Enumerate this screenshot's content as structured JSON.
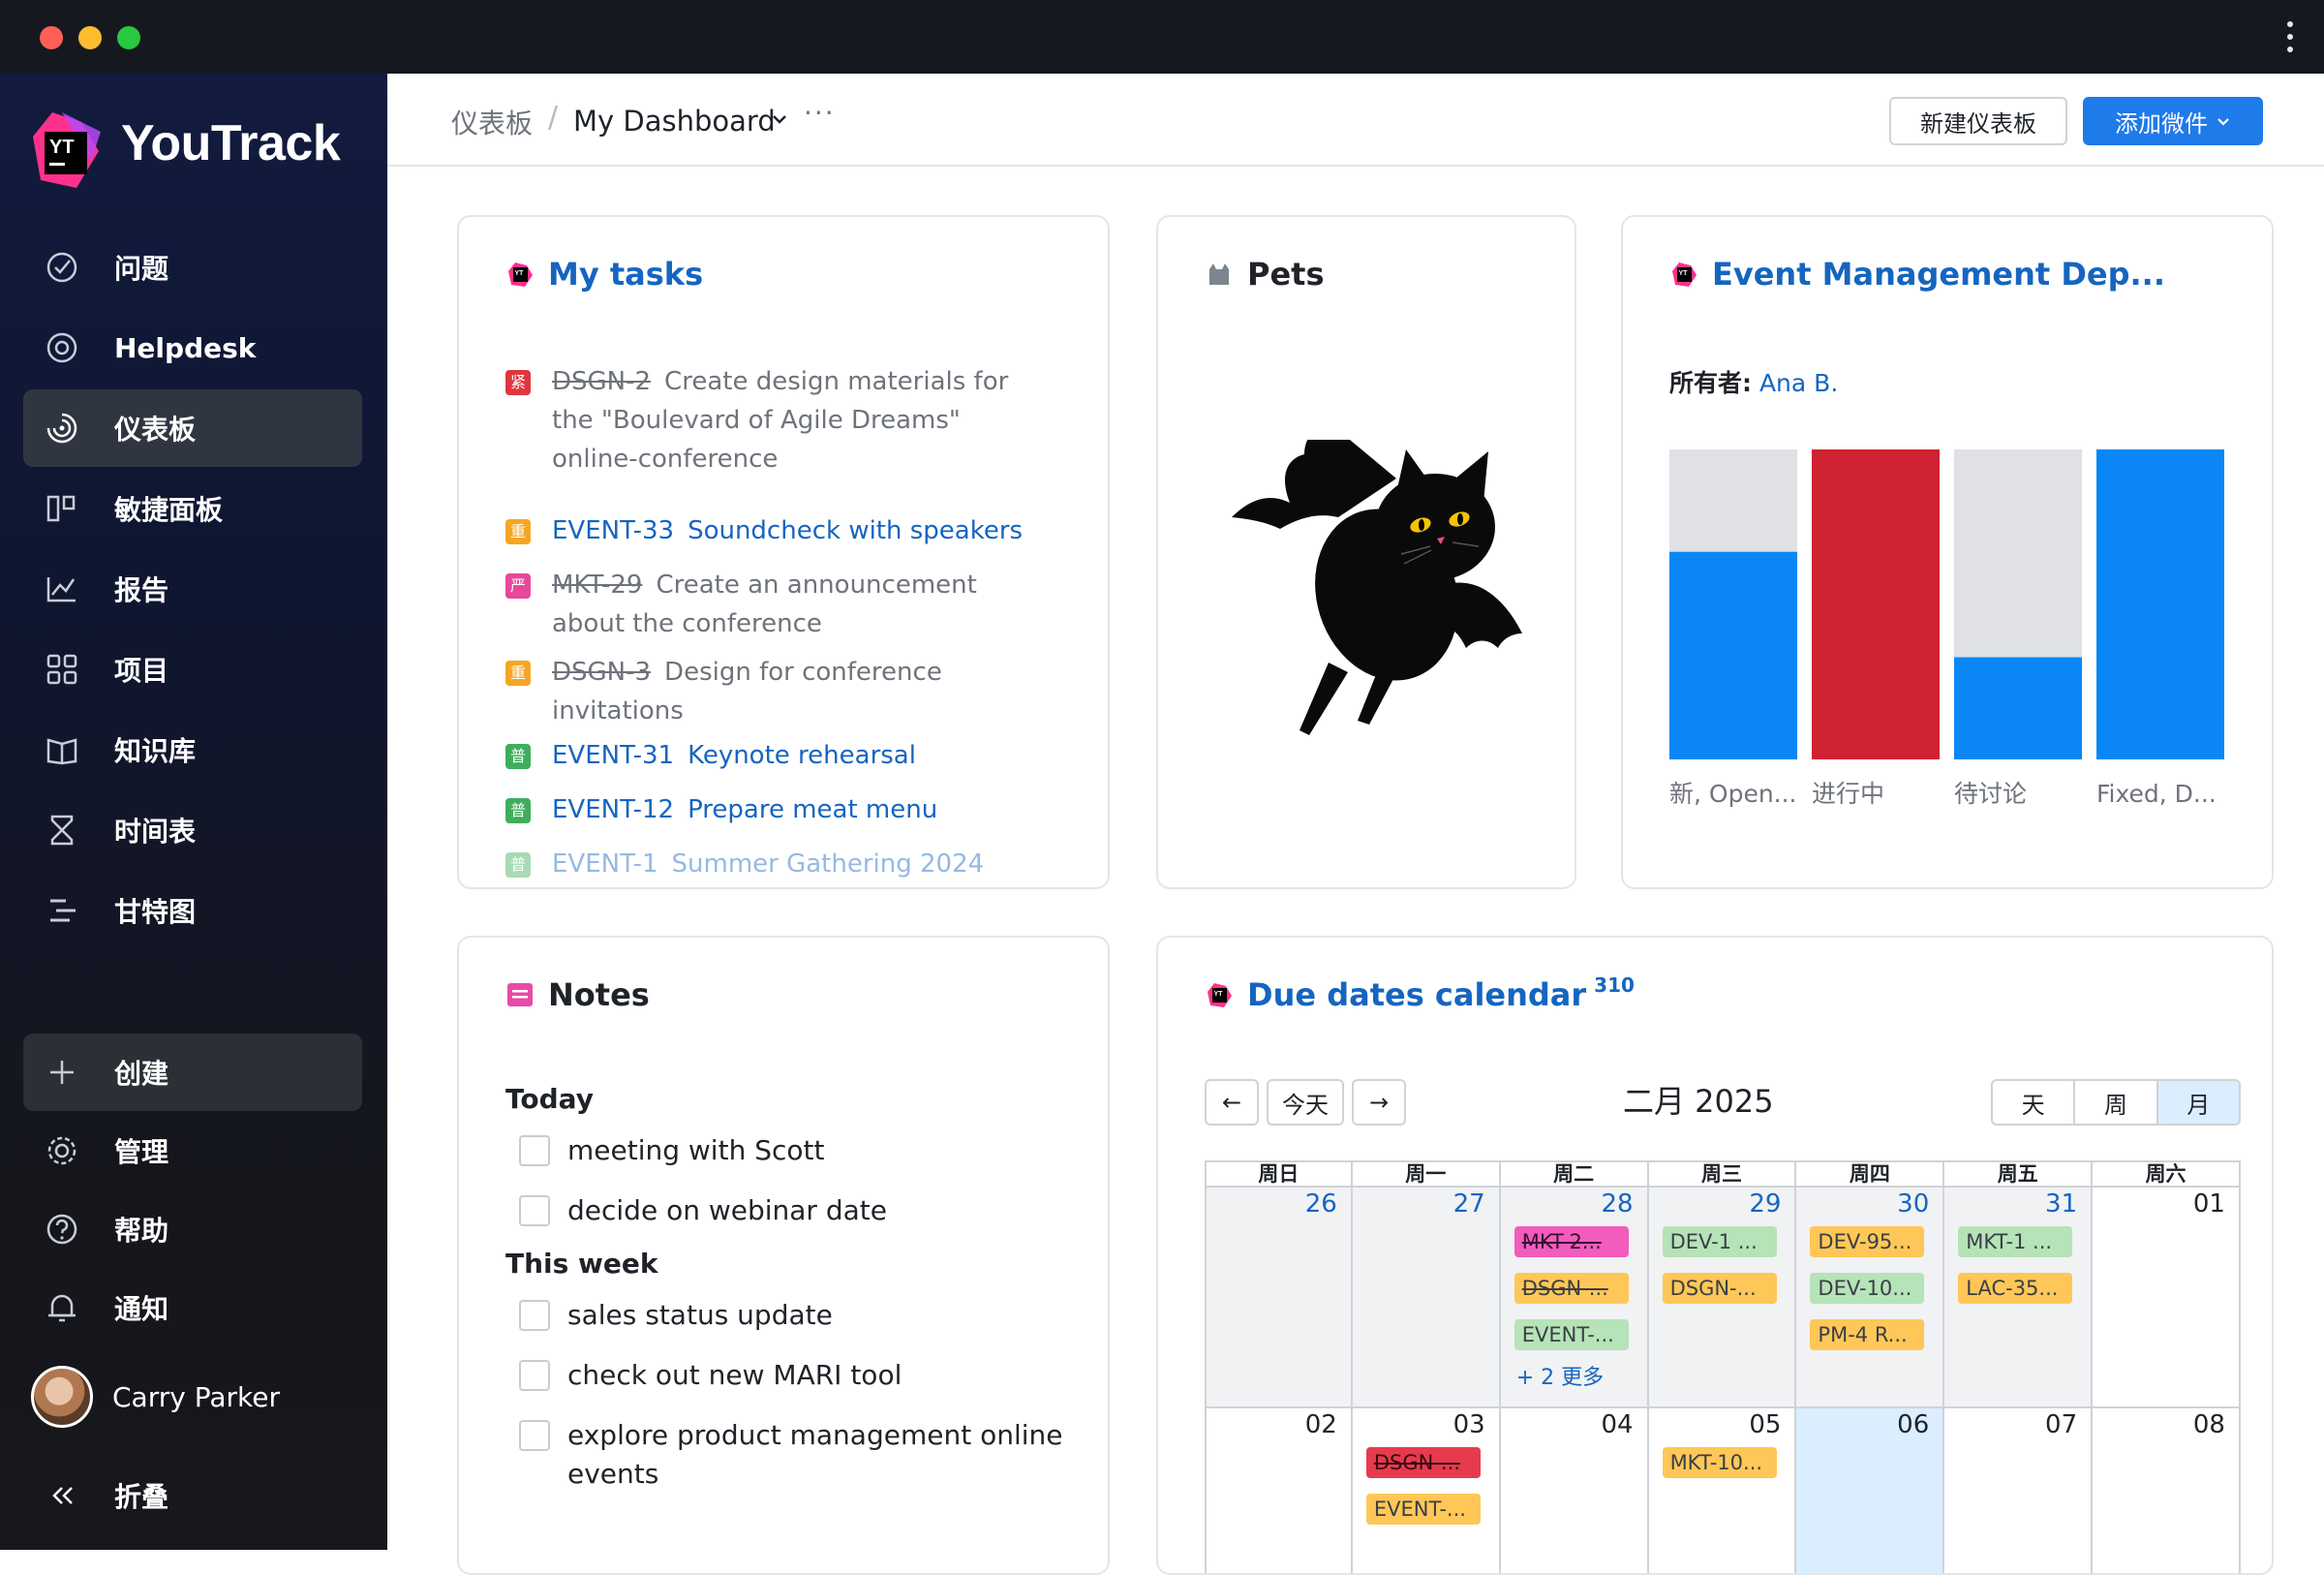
{
  "window": {
    "menu_icon": "vertical-dots-icon"
  },
  "sidebar": {
    "brand": "YouTrack",
    "logo_text": "YT",
    "items": [
      {
        "label": "问题",
        "icon": "check-circle-icon"
      },
      {
        "label": "Helpdesk",
        "icon": "lifebuoy-icon"
      },
      {
        "label": "仪表板",
        "icon": "dashboard-icon",
        "active": true
      },
      {
        "label": "敏捷面板",
        "icon": "agile-board-icon"
      },
      {
        "label": "报告",
        "icon": "chart-icon"
      },
      {
        "label": "项目",
        "icon": "grid-icon"
      },
      {
        "label": "知识库",
        "icon": "book-icon"
      },
      {
        "label": "时间表",
        "icon": "hourglass-icon"
      },
      {
        "label": "甘特图",
        "icon": "gantt-icon"
      }
    ],
    "bottom": [
      {
        "label": "创建",
        "icon": "plus-icon"
      },
      {
        "label": "管理",
        "icon": "gear-icon"
      },
      {
        "label": "帮助",
        "icon": "help-icon"
      },
      {
        "label": "通知",
        "icon": "bell-icon"
      }
    ],
    "user": {
      "name": "Carry Parker"
    },
    "collapse_label": "折叠"
  },
  "header": {
    "breadcrumb_root": "仪表板",
    "breadcrumb_sep": "/",
    "dashboard_name": "My Dashboard",
    "more": "···",
    "new_dashboard": "新建仪表板",
    "add_widget": "添加微件"
  },
  "my_tasks": {
    "title": "My tasks",
    "tasks": [
      {
        "prio": "紧",
        "prio_color": "#e0363f",
        "id": "DSGN-2",
        "summary": "Create design materials for the \"Boulevard of Agile Dreams\" online-conference",
        "done": true
      },
      {
        "prio": "重",
        "prio_color": "#f5a623",
        "id": "EVENT-33",
        "summary": "Soundcheck with speakers",
        "done": false
      },
      {
        "prio": "严",
        "prio_color": "#e8479a",
        "id": "MKT-29",
        "summary": "Create an announcement about the conference",
        "done": true
      },
      {
        "prio": "重",
        "prio_color": "#f5a623",
        "id": "DSGN-3",
        "summary": "Design for conference invitations",
        "done": true
      },
      {
        "prio": "普",
        "prio_color": "#3fae5c",
        "id": "EVENT-31",
        "summary": "Keynote rehearsal",
        "done": false
      },
      {
        "prio": "普",
        "prio_color": "#3fae5c",
        "id": "EVENT-12",
        "summary": "Prepare meat menu",
        "done": false
      },
      {
        "prio": "普",
        "prio_color": "#3fae5c",
        "id": "EVENT-1",
        "summary": "Summer Gathering 2024",
        "done": false
      }
    ]
  },
  "pets": {
    "title": "Pets",
    "image": "bat-cat-illustration"
  },
  "event_mgmt": {
    "title": "Event Management Dep...",
    "owner_label": "所有者:",
    "owner": "Ana B.",
    "chart_data": {
      "type": "bar",
      "stacked": true,
      "normalized": true,
      "categories": [
        "新, Open...",
        "进行中",
        "待讨论",
        "Fixed, D..."
      ],
      "series": [
        {
          "color": "#0a87f5",
          "values": [
            0.67,
            0,
            0.33,
            1.0
          ]
        },
        {
          "color": "#cf2233",
          "values": [
            0,
            1.0,
            0,
            0
          ]
        },
        {
          "color": "#dfe1e5",
          "values": [
            0.33,
            0,
            0.67,
            0
          ]
        }
      ],
      "ylim": [
        0,
        1
      ],
      "grid": false
    }
  },
  "notes": {
    "title": "Notes",
    "sections": [
      {
        "heading": "Today",
        "items": [
          "meeting with Scott",
          "decide on webinar date"
        ]
      },
      {
        "heading": "This week",
        "items": [
          "sales status update",
          "check out new MARI tool",
          "explore product management online events"
        ]
      }
    ]
  },
  "calendar": {
    "title": "Due dates calendar",
    "count": "310",
    "prev": "←",
    "today_btn": "今天",
    "next": "→",
    "month": "二月 2025",
    "views": [
      "天",
      "周",
      "月"
    ],
    "active_view": "月",
    "weekdays": [
      "周日",
      "周一",
      "周二",
      "周三",
      "周四",
      "周五",
      "周六"
    ],
    "weeks": [
      [
        {
          "day": "26",
          "muted": true,
          "events": []
        },
        {
          "day": "27",
          "muted": true,
          "events": []
        },
        {
          "day": "28",
          "muted": true,
          "events": [
            {
              "text": "MKT-2...",
              "color": "pink"
            },
            {
              "text": "DSGN-...",
              "color": "orange",
              "strike": true
            },
            {
              "text": "EVENT-...",
              "color": "green"
            }
          ],
          "more": "+ 2 更多"
        },
        {
          "day": "29",
          "muted": true,
          "events": [
            {
              "text": "DEV-1 ...",
              "color": "green"
            },
            {
              "text": "DSGN-...",
              "color": "orange"
            }
          ]
        },
        {
          "day": "30",
          "muted": true,
          "events": [
            {
              "text": "DEV-95...",
              "color": "orange"
            },
            {
              "text": "DEV-10...",
              "color": "green"
            },
            {
              "text": "PM-4 R...",
              "color": "orange"
            }
          ]
        },
        {
          "day": "31",
          "muted": true,
          "events": [
            {
              "text": "MKT-1 ...",
              "color": "green"
            },
            {
              "text": "LAC-35...",
              "color": "orange"
            }
          ]
        },
        {
          "day": "01",
          "muted": false,
          "events": []
        }
      ],
      [
        {
          "day": "02",
          "events": []
        },
        {
          "day": "03",
          "events": [
            {
              "text": "DSGN-...",
              "color": "red"
            },
            {
              "text": "EVENT-...",
              "color": "orange"
            }
          ]
        },
        {
          "day": "04",
          "events": []
        },
        {
          "day": "05",
          "events": [
            {
              "text": "MKT-10...",
              "color": "orange"
            }
          ]
        },
        {
          "day": "06",
          "today": true,
          "events": []
        },
        {
          "day": "07",
          "events": []
        },
        {
          "day": "08",
          "events": []
        }
      ]
    ]
  }
}
